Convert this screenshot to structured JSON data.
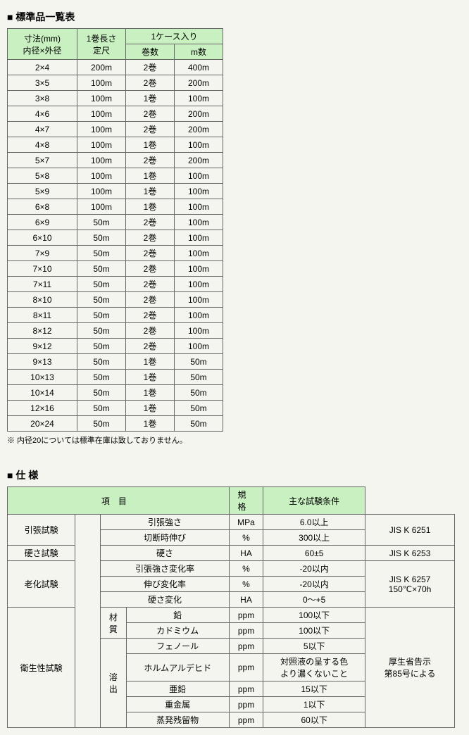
{
  "heading1": "■ 標準品一覧表",
  "table1": {
    "header": {
      "c0a": "寸法(mm)",
      "c0b": "内径×外径",
      "c1a": "1巻長さ",
      "c1b": "定尺",
      "c23": "1ケース入り",
      "c2": "巻数",
      "c3": "m数"
    },
    "rows": [
      [
        "2×4",
        "200m",
        "2巻",
        "400m"
      ],
      [
        "3×5",
        "100m",
        "2巻",
        "200m"
      ],
      [
        "3×8",
        "100m",
        "1巻",
        "100m"
      ],
      [
        "4×6",
        "100m",
        "2巻",
        "200m"
      ],
      [
        "4×7",
        "100m",
        "2巻",
        "200m"
      ],
      [
        "4×8",
        "100m",
        "1巻",
        "100m"
      ],
      [
        "5×7",
        "100m",
        "2巻",
        "200m"
      ],
      [
        "5×8",
        "100m",
        "1巻",
        "100m"
      ],
      [
        "5×9",
        "100m",
        "1巻",
        "100m"
      ],
      [
        "6×8",
        "100m",
        "1巻",
        "100m"
      ],
      [
        "6×9",
        "50m",
        "2巻",
        "100m"
      ],
      [
        "6×10",
        "50m",
        "2巻",
        "100m"
      ],
      [
        "7×9",
        "50m",
        "2巻",
        "100m"
      ],
      [
        "7×10",
        "50m",
        "2巻",
        "100m"
      ],
      [
        "7×11",
        "50m",
        "2巻",
        "100m"
      ],
      [
        "8×10",
        "50m",
        "2巻",
        "100m"
      ],
      [
        "8×11",
        "50m",
        "2巻",
        "100m"
      ],
      [
        "8×12",
        "50m",
        "2巻",
        "100m"
      ],
      [
        "9×12",
        "50m",
        "2巻",
        "100m"
      ],
      [
        "9×13",
        "50m",
        "1巻",
        "50m"
      ],
      [
        "10×13",
        "50m",
        "1巻",
        "50m"
      ],
      [
        "10×14",
        "50m",
        "1巻",
        "50m"
      ],
      [
        "12×16",
        "50m",
        "1巻",
        "50m"
      ],
      [
        "20×24",
        "50m",
        "1巻",
        "50m"
      ]
    ]
  },
  "note1": "※ 内径20については標準在庫は致しておりません。",
  "heading2": "■ 仕 様",
  "table2": {
    "header": {
      "c1": "項目",
      "c2": "規格",
      "c3": "主な試験条件"
    },
    "rows": [
      {
        "g1": "引張試験",
        "g1rows": 2,
        "g2": "",
        "item": "引張強さ",
        "unit": "MPa",
        "spec": "6.0以上",
        "cond": "JIS K 6251",
        "condrows": 2
      },
      {
        "item": "切断時伸び",
        "unit": "%",
        "spec": "300以上"
      },
      {
        "g1": "硬さ試験",
        "g1rows": 1,
        "item": "硬さ",
        "unit": "HA",
        "spec": "60±5",
        "cond": "JIS K 6253",
        "condrows": 1
      },
      {
        "g1": "老化試験",
        "g1rows": 3,
        "item": "引張強さ変化率",
        "unit": "%",
        "spec": "-20以内",
        "cond": "JIS K 6257\n150℃×70h",
        "condrows": 3
      },
      {
        "item": "伸び変化率",
        "unit": "%",
        "spec": "-20以内"
      },
      {
        "item": "硬さ変化",
        "unit": "HA",
        "spec": "0～+5"
      },
      {
        "g1": "衛生性試験",
        "g1rows": 7,
        "g2": "材\n質",
        "g2rows": 2,
        "item": "鉛",
        "unit": "ppm",
        "spec": "100以下",
        "cond": "厚生省告示\n第85号による",
        "condrows": 7
      },
      {
        "item": "カドミウム",
        "unit": "ppm",
        "spec": "100以下"
      },
      {
        "g2": "溶\n出",
        "g2rows": 5,
        "item": "フェノール",
        "unit": "ppm",
        "spec": "5以下"
      },
      {
        "item": "ホルムアルデヒド",
        "unit": "ppm",
        "spec": "対照液の呈する色\nより濃くないこと",
        "tall": true
      },
      {
        "item": "亜鉛",
        "unit": "ppm",
        "spec": "15以下"
      },
      {
        "item": "重金属",
        "unit": "ppm",
        "spec": "1以下"
      },
      {
        "item": "蒸発残留物",
        "unit": "ppm",
        "spec": "60以下"
      }
    ]
  }
}
